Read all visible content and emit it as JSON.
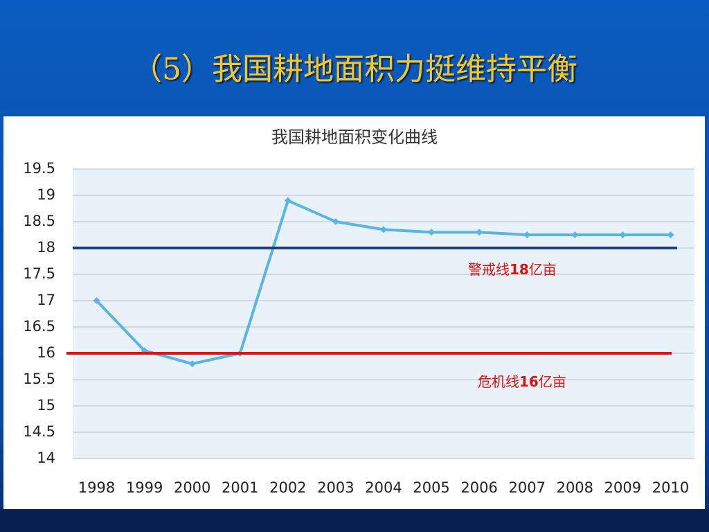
{
  "slide_title": "（5）我国耕地面积力挺维持平衡",
  "chart_data": {
    "type": "line",
    "title": "我国耕地面积变化曲线",
    "categories": [
      "1998",
      "1999",
      "2000",
      "2001",
      "2002",
      "2003",
      "2004",
      "2005",
      "2006",
      "2007",
      "2008",
      "2009",
      "2010"
    ],
    "series": [
      {
        "name": "耕地面积",
        "color": "#5ab4e5",
        "values": [
          17,
          16.05,
          15.8,
          16,
          18.9,
          18.5,
          18.35,
          18.3,
          18.3,
          18.25,
          18.25,
          18.25,
          18.25
        ]
      }
    ],
    "ylim": [
      14,
      19.5
    ],
    "yticks": [
      14,
      14.5,
      15,
      15.5,
      16,
      16.5,
      17,
      17.5,
      18,
      18.5,
      19,
      19.5
    ],
    "grid": true,
    "reference_lines": [
      {
        "value": 18,
        "color": "#1f3f73",
        "label": [
          "警戒线",
          "18",
          "亿亩"
        ]
      },
      {
        "value": 16,
        "color": "#e01010",
        "label": [
          "危机线",
          "16",
          "亿亩"
        ]
      }
    ]
  }
}
